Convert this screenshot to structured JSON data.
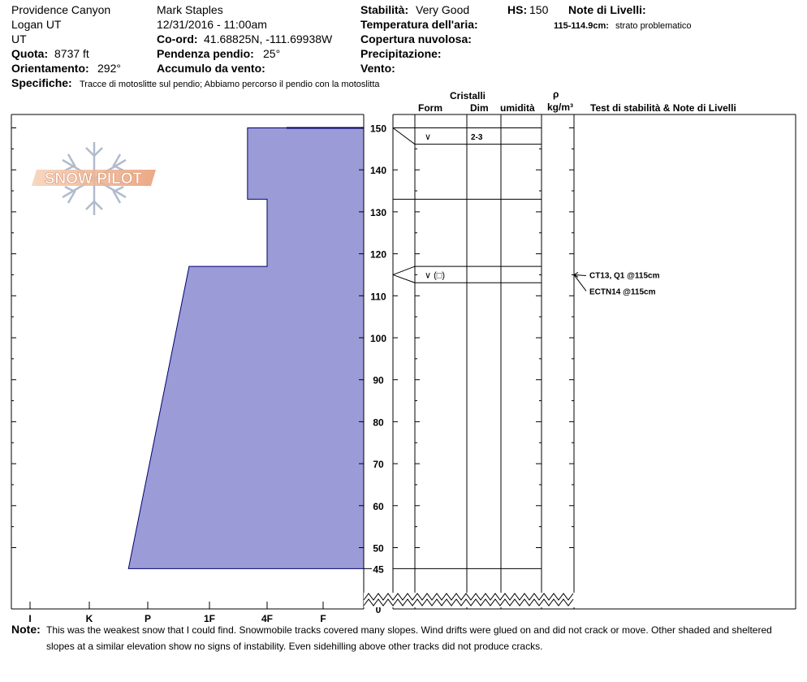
{
  "header": {
    "location": "Providence Canyon",
    "region": "Logan UT",
    "state": "UT",
    "elevation_label": "Quota:",
    "elevation_value": "8737 ft",
    "aspect_label": "Orientamento:",
    "aspect_value": "292°",
    "observer": "Mark Staples",
    "datetime": "12/31/2016 - 11:00am",
    "coord_label": "Co-ord:",
    "coord_value": "41.68825N, -111.69938W",
    "slope_label": "Pendenza pendio:",
    "slope_value": "25°",
    "wind_loading_label": "Accumulo da vento:",
    "stability_label": "Stabilità:",
    "stability_value": "Very Good",
    "hs_label": "HS:",
    "hs_value": "150",
    "air_temp_label": "Temperatura dell'aria:",
    "sky_label": "Copertura nuvolosa:",
    "precip_label": "Precipitazione:",
    "wind_label": "Vento:",
    "layer_notes_label": "Note di Livelli:",
    "layer_note_depth": "115-114.9cm:",
    "layer_note_text": "strato problematico",
    "specifics_label": "Specifiche:",
    "specifics_text": "Tracce di motoslitte sul pendio; Abbiamo percorso il pendio con la motoslitta"
  },
  "columns": {
    "cristalli": "Cristalli",
    "form": "Form",
    "dim": "Dim",
    "umidita": "umidità",
    "rho": "ρ",
    "density_unit": "kg/m³",
    "stability_notes": "Test di stabilità & Note di Livelli"
  },
  "logo_text": "SNOW PILOT",
  "note_label": "Note:",
  "note_line1": "This was the weakest snow that I could find. Snowmobile tracks covered many slopes. Wind drifts were glued on and did not crack or move. Other shaded and sheltered",
  "note_line2": "slopes at a similar elevation show no signs of instability. Even sidehilling above other tracks did not produce cracks.",
  "chart_data": {
    "type": "snow-profile",
    "hardness_scale": [
      "I",
      "K",
      "P",
      "1F",
      "4F",
      "F"
    ],
    "depth_ticks": [
      150,
      140,
      130,
      120,
      110,
      100,
      90,
      80,
      70,
      60,
      50,
      45,
      0
    ],
    "depth_range_cm": [
      0,
      150
    ],
    "profile_bottom_cm": 45,
    "layers": [
      {
        "top": 150,
        "bottom": 133,
        "hardness": "1F+",
        "form": "∨",
        "size": "2-3"
      },
      {
        "top": 133,
        "bottom": 117,
        "hardness": "4F",
        "form": "",
        "size": ""
      },
      {
        "top": 117,
        "bottom": 113,
        "hardness": "4F",
        "form": "∨ (□)",
        "size": ""
      },
      {
        "top": 113,
        "bottom": 45,
        "hardness_top": "1F-",
        "hardness_bottom": "P-",
        "form": "",
        "size": ""
      }
    ],
    "tests": [
      {
        "depth": 115,
        "label": "CT13, Q1 @115cm"
      },
      {
        "depth": 115,
        "label": "ECTN14 @115cm"
      }
    ],
    "fill_color": "#9b9bd8",
    "outline_color": "#00006b"
  }
}
